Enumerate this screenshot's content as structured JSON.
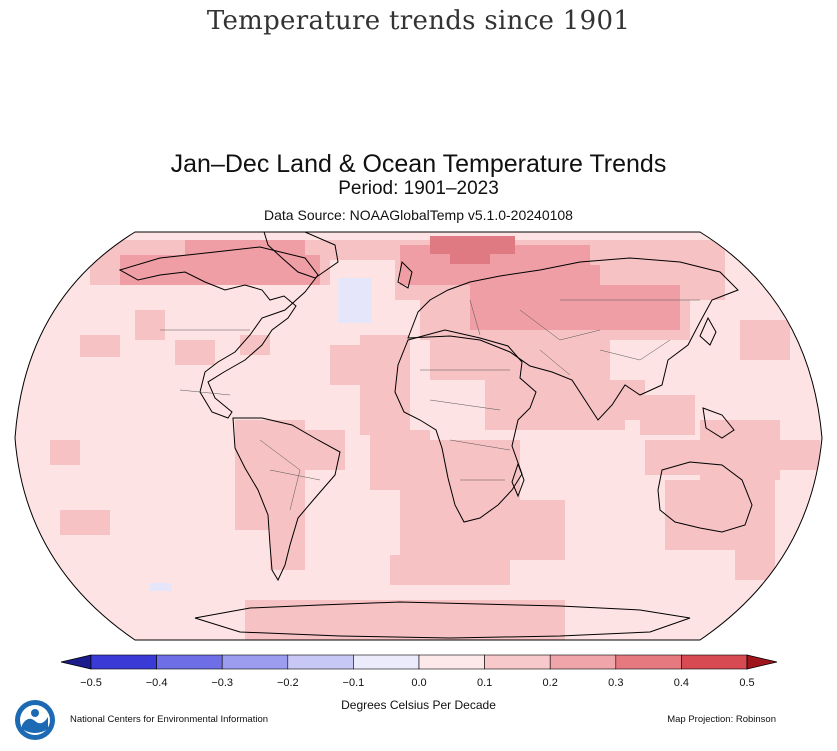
{
  "page": {
    "heading": "Temperature trends since 1901"
  },
  "map": {
    "title": "Jan–Dec Land & Ocean Temperature Trends",
    "period": "Period: 1901–2023",
    "data_source": "Data Source: NOAAGlobalTemp v5.1.0-20240108",
    "projection": "Map Projection: Robinson",
    "colors": {
      "background_trend": "#fde3e3",
      "moderate_trend": "#f6c2c4",
      "strong_trend": "#ee9ea4",
      "strongest_trend": "#e07a82",
      "cooling": "#e6e6fb",
      "outline": "#000000"
    }
  },
  "legend": {
    "title": "Degrees Celsius Per Decade",
    "ticks": [
      "−0.5",
      "−0.4",
      "−0.3",
      "−0.2",
      "−0.1",
      "0.0",
      "0.1",
      "0.2",
      "0.3",
      "0.4",
      "0.5"
    ],
    "bins": [
      {
        "min": -0.5,
        "max": -0.4,
        "color": "#3a3ad6"
      },
      {
        "min": -0.4,
        "max": -0.3,
        "color": "#6e6ee6"
      },
      {
        "min": -0.3,
        "max": -0.2,
        "color": "#9d9def"
      },
      {
        "min": -0.2,
        "max": -0.1,
        "color": "#c8c8f7"
      },
      {
        "min": -0.1,
        "max": 0.0,
        "color": "#ebebfc"
      },
      {
        "min": 0.0,
        "max": 0.1,
        "color": "#fde9e9"
      },
      {
        "min": 0.1,
        "max": 0.2,
        "color": "#f8c9cb"
      },
      {
        "min": 0.2,
        "max": 0.3,
        "color": "#f0a5aa"
      },
      {
        "min": 0.3,
        "max": 0.4,
        "color": "#e6797f"
      },
      {
        "min": 0.4,
        "max": 0.5,
        "color": "#d84a52"
      }
    ],
    "below_color": "#1c1c8c",
    "above_color": "#a0141c"
  },
  "footer": {
    "organization": "National Centers for Environmental Information",
    "logo_icon": "noaa-logo-icon"
  }
}
